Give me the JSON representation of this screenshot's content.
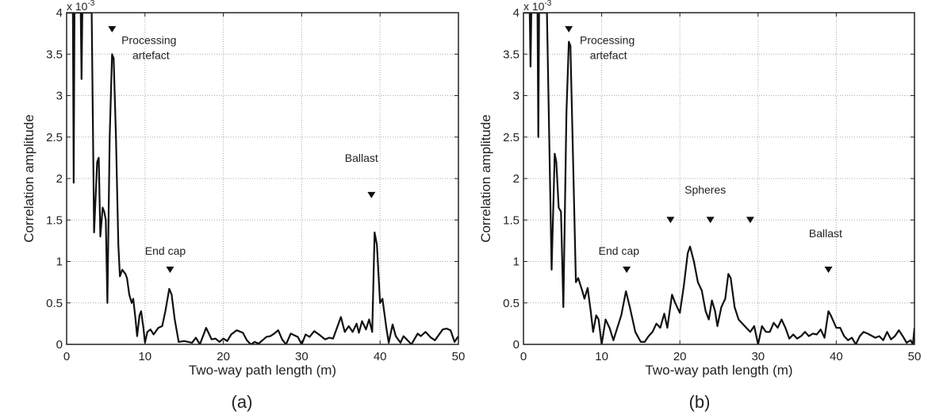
{
  "chart_data": [
    {
      "type": "line",
      "panel_label": "(a)",
      "xlabel": "Two-way path length (m)",
      "ylabel": "Correlation amplitude",
      "y_multiplier": "x 10",
      "y_multiplier_exp": "-3",
      "xlim": [
        0,
        50
      ],
      "ylim": [
        0,
        4
      ],
      "grid": true,
      "xticks": [
        "0",
        "10",
        "20",
        "30",
        "40",
        "50"
      ],
      "yticks": [
        "0",
        "0.5",
        "1",
        "1.5",
        "2",
        "2.5",
        "3",
        "3.5",
        "4"
      ],
      "series": [
        {
          "name": "correlation",
          "x_y": [
            [
              0,
              4
            ],
            [
              0.8,
              4
            ],
            [
              0.9,
              1.95
            ],
            [
              1.0,
              4
            ],
            [
              1.8,
              4
            ],
            [
              1.9,
              3.2
            ],
            [
              2.0,
              4
            ],
            [
              3.2,
              4
            ],
            [
              3.5,
              1.35
            ],
            [
              3.9,
              2.2
            ],
            [
              4.1,
              2.25
            ],
            [
              4.3,
              1.3
            ],
            [
              4.6,
              1.65
            ],
            [
              4.8,
              1.6
            ],
            [
              5.0,
              1.5
            ],
            [
              5.2,
              0.5
            ],
            [
              5.5,
              2.5
            ],
            [
              5.8,
              3.5
            ],
            [
              6.0,
              3.45
            ],
            [
              6.3,
              2.5
            ],
            [
              6.6,
              1.2
            ],
            [
              6.8,
              0.82
            ],
            [
              7.1,
              0.9
            ],
            [
              7.5,
              0.85
            ],
            [
              7.7,
              0.8
            ],
            [
              8.0,
              0.6
            ],
            [
              8.3,
              0.5
            ],
            [
              8.5,
              0.55
            ],
            [
              8.8,
              0.3
            ],
            [
              9.0,
              0.1
            ],
            [
              9.3,
              0.35
            ],
            [
              9.5,
              0.4
            ],
            [
              9.8,
              0.2
            ],
            [
              10.0,
              0.02
            ],
            [
              10.3,
              0.15
            ],
            [
              10.7,
              0.18
            ],
            [
              11.1,
              0.12
            ],
            [
              11.7,
              0.2
            ],
            [
              12.2,
              0.22
            ],
            [
              12.6,
              0.4
            ],
            [
              13.1,
              0.67
            ],
            [
              13.4,
              0.6
            ],
            [
              13.8,
              0.3
            ],
            [
              14.3,
              0.03
            ],
            [
              15,
              0.04
            ],
            [
              16,
              0.02
            ],
            [
              16.5,
              0.08
            ],
            [
              17,
              0
            ],
            [
              17.8,
              0.2
            ],
            [
              18.5,
              0.06
            ],
            [
              19,
              0.07
            ],
            [
              19.5,
              0.03
            ],
            [
              20,
              0.07
            ],
            [
              20.5,
              0.04
            ],
            [
              21,
              0.12
            ],
            [
              21.7,
              0.17
            ],
            [
              22.5,
              0.14
            ],
            [
              23,
              0.05
            ],
            [
              23.5,
              0
            ],
            [
              24,
              0.03
            ],
            [
              24.5,
              0.01
            ],
            [
              25,
              0.05
            ],
            [
              25.5,
              0.09
            ],
            [
              26,
              0.1
            ],
            [
              26.5,
              0.13
            ],
            [
              27,
              0.17
            ],
            [
              27.5,
              0.06
            ],
            [
              28,
              0
            ],
            [
              28.6,
              0.13
            ],
            [
              29.5,
              0.09
            ],
            [
              30,
              0
            ],
            [
              30.5,
              0.12
            ],
            [
              31,
              0.09
            ],
            [
              31.6,
              0.16
            ],
            [
              32.2,
              0.12
            ],
            [
              33,
              0.06
            ],
            [
              33.5,
              0.08
            ],
            [
              34,
              0.07
            ],
            [
              34.5,
              0.2
            ],
            [
              35,
              0.33
            ],
            [
              35.5,
              0.15
            ],
            [
              36,
              0.22
            ],
            [
              36.5,
              0.15
            ],
            [
              37,
              0.25
            ],
            [
              37.3,
              0.14
            ],
            [
              37.7,
              0.28
            ],
            [
              38.2,
              0.18
            ],
            [
              38.6,
              0.3
            ],
            [
              39,
              0.15
            ],
            [
              39.3,
              1.35
            ],
            [
              39.6,
              1.2
            ],
            [
              40,
              0.5
            ],
            [
              40.3,
              0.55
            ],
            [
              40.8,
              0.2
            ],
            [
              41.1,
              0.02
            ],
            [
              41.6,
              0.24
            ],
            [
              42,
              0.1
            ],
            [
              42.6,
              0.02
            ],
            [
              43,
              0.1
            ],
            [
              43.5,
              0.05
            ],
            [
              44,
              0
            ],
            [
              44.8,
              0.13
            ],
            [
              45.2,
              0.1
            ],
            [
              45.8,
              0.15
            ],
            [
              46.5,
              0.08
            ],
            [
              47,
              0.05
            ],
            [
              48,
              0.18
            ],
            [
              48.5,
              0.19
            ],
            [
              49,
              0.17
            ],
            [
              49.5,
              0.03
            ],
            [
              50,
              0.1
            ]
          ]
        }
      ],
      "markers": [
        [
          5.8,
          3.8
        ],
        [
          13.2,
          0.9
        ],
        [
          38.9,
          1.8
        ]
      ],
      "annotations": [
        {
          "text": "Processing",
          "x": 7.0,
          "y": 3.62
        },
        {
          "text": "artefact",
          "x": 8.4,
          "y": 3.44
        },
        {
          "text": "End cap",
          "x": 10.0,
          "y": 1.08
        },
        {
          "text": "Ballast",
          "x": 35.5,
          "y": 2.2
        }
      ]
    },
    {
      "type": "line",
      "panel_label": "(b)",
      "xlabel": "Two-way path length (m)",
      "ylabel": "Correlation amplitude",
      "y_multiplier": "x 10",
      "y_multiplier_exp": "-3",
      "xlim": [
        0,
        50
      ],
      "ylim": [
        0,
        4
      ],
      "grid": true,
      "xticks": [
        "0",
        "10",
        "20",
        "30",
        "40",
        "50"
      ],
      "yticks": [
        "0",
        "0.5",
        "1",
        "1.5",
        "2",
        "2.5",
        "3",
        "3.5",
        "4"
      ],
      "series": [
        {
          "name": "correlation",
          "x_y": [
            [
              0,
              4
            ],
            [
              0.8,
              4
            ],
            [
              0.9,
              3.35
            ],
            [
              1.0,
              4
            ],
            [
              1.8,
              4
            ],
            [
              1.9,
              2.5
            ],
            [
              2.0,
              4
            ],
            [
              3.0,
              4
            ],
            [
              3.6,
              0.9
            ],
            [
              4.0,
              2.3
            ],
            [
              4.2,
              2.2
            ],
            [
              4.5,
              1.65
            ],
            [
              4.8,
              1.6
            ],
            [
              5.1,
              0.45
            ],
            [
              5.5,
              2.8
            ],
            [
              5.8,
              3.65
            ],
            [
              6.0,
              3.6
            ],
            [
              6.4,
              2
            ],
            [
              6.7,
              0.75
            ],
            [
              7.0,
              0.8
            ],
            [
              7.5,
              0.65
            ],
            [
              7.8,
              0.55
            ],
            [
              8.2,
              0.68
            ],
            [
              8.6,
              0.4
            ],
            [
              8.9,
              0.15
            ],
            [
              9.3,
              0.35
            ],
            [
              9.6,
              0.3
            ],
            [
              10,
              0
            ],
            [
              10.5,
              0.3
            ],
            [
              11,
              0.2
            ],
            [
              11.5,
              0.05
            ],
            [
              12,
              0.2
            ],
            [
              12.5,
              0.35
            ],
            [
              13.1,
              0.64
            ],
            [
              13.6,
              0.45
            ],
            [
              14.3,
              0.15
            ],
            [
              15,
              0.03
            ],
            [
              15.5,
              0.03
            ],
            [
              16,
              0.1
            ],
            [
              16.5,
              0.15
            ],
            [
              17,
              0.25
            ],
            [
              17.5,
              0.2
            ],
            [
              18,
              0.37
            ],
            [
              18.4,
              0.2
            ],
            [
              19,
              0.6
            ],
            [
              19.4,
              0.5
            ],
            [
              20,
              0.38
            ],
            [
              20.5,
              0.7
            ],
            [
              21,
              1.1
            ],
            [
              21.3,
              1.18
            ],
            [
              21.8,
              1.0
            ],
            [
              22.3,
              0.75
            ],
            [
              22.8,
              0.65
            ],
            [
              23.3,
              0.4
            ],
            [
              23.7,
              0.3
            ],
            [
              24.1,
              0.53
            ],
            [
              24.5,
              0.4
            ],
            [
              24.8,
              0.22
            ],
            [
              25.3,
              0.45
            ],
            [
              25.8,
              0.55
            ],
            [
              26.2,
              0.85
            ],
            [
              26.5,
              0.8
            ],
            [
              27,
              0.45
            ],
            [
              27.5,
              0.3
            ],
            [
              28,
              0.25
            ],
            [
              28.5,
              0.2
            ],
            [
              29,
              0.15
            ],
            [
              29.5,
              0.22
            ],
            [
              30,
              0
            ],
            [
              30.5,
              0.22
            ],
            [
              31,
              0.15
            ],
            [
              31.5,
              0.15
            ],
            [
              32,
              0.26
            ],
            [
              32.5,
              0.2
            ],
            [
              33,
              0.3
            ],
            [
              33.5,
              0.2
            ],
            [
              34,
              0.07
            ],
            [
              34.5,
              0.12
            ],
            [
              35,
              0.07
            ],
            [
              35.5,
              0.1
            ],
            [
              36,
              0.15
            ],
            [
              36.5,
              0.1
            ],
            [
              37,
              0.13
            ],
            [
              37.5,
              0.12
            ],
            [
              38,
              0.18
            ],
            [
              38.5,
              0.08
            ],
            [
              39,
              0.4
            ],
            [
              39.3,
              0.35
            ],
            [
              40,
              0.2
            ],
            [
              40.5,
              0.2
            ],
            [
              41,
              0.1
            ],
            [
              41.5,
              0.05
            ],
            [
              42,
              0.08
            ],
            [
              42.5,
              0
            ],
            [
              43,
              0.1
            ],
            [
              43.5,
              0.15
            ],
            [
              44,
              0.13
            ],
            [
              45,
              0.08
            ],
            [
              45.5,
              0.1
            ],
            [
              46,
              0.05
            ],
            [
              46.5,
              0.15
            ],
            [
              47,
              0.06
            ],
            [
              47.5,
              0.1
            ],
            [
              48,
              0.17
            ],
            [
              48.5,
              0.1
            ],
            [
              49,
              0.02
            ],
            [
              49.5,
              0.05
            ],
            [
              49.8,
              0
            ],
            [
              50,
              0.2
            ]
          ]
        }
      ],
      "markers": [
        [
          5.8,
          3.8
        ],
        [
          13.2,
          0.9
        ],
        [
          18.8,
          1.5
        ],
        [
          23.9,
          1.5
        ],
        [
          29.0,
          1.5
        ],
        [
          39.0,
          0.9
        ]
      ],
      "annotations": [
        {
          "text": "Processing",
          "x": 7.2,
          "y": 3.62
        },
        {
          "text": "artefact",
          "x": 8.5,
          "y": 3.44
        },
        {
          "text": "End cap",
          "x": 9.6,
          "y": 1.08
        },
        {
          "text": "Spheres",
          "x": 20.6,
          "y": 1.82
        },
        {
          "text": "Ballast",
          "x": 36.5,
          "y": 1.29
        }
      ]
    }
  ]
}
